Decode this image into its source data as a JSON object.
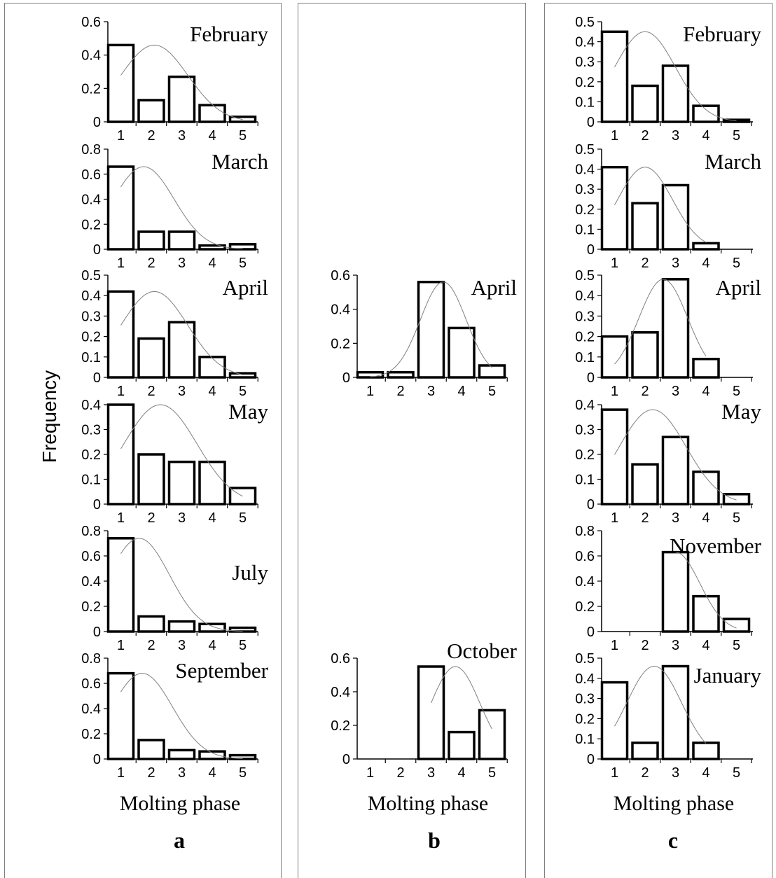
{
  "colors": {
    "bar_stroke": "#000000",
    "bar_fill": "#ffffff",
    "curve": "#808080",
    "panel_border": "#7f7f7f"
  },
  "figure": {
    "ylabel": "Frequency",
    "xlabel": "Molting phase",
    "panels": [
      {
        "letter": "a",
        "xlabel": "Molting phase"
      },
      {
        "letter": "b",
        "xlabel": "Molting phase"
      },
      {
        "letter": "c",
        "xlabel": "Molting phase"
      }
    ]
  },
  "chart_data": [
    {
      "type": "bar",
      "panel": "a",
      "row": 0,
      "title": "February",
      "categories": [
        "1",
        "2",
        "3",
        "4",
        "5"
      ],
      "values": [
        0.46,
        0.13,
        0.27,
        0.1,
        0.03
      ],
      "ylim": [
        0,
        0.6
      ],
      "yticks": [
        "0",
        "0.2",
        "0.4",
        "0.6"
      ],
      "fit_curve": {
        "mean": 2.1,
        "sd": 1.1,
        "peak": 0.46,
        "x_range": [
          1,
          5
        ]
      }
    },
    {
      "type": "bar",
      "panel": "a",
      "row": 1,
      "title": "March",
      "categories": [
        "1",
        "2",
        "3",
        "4",
        "5"
      ],
      "values": [
        0.66,
        0.14,
        0.14,
        0.03,
        0.04
      ],
      "ylim": [
        0,
        0.8
      ],
      "yticks": [
        "0",
        "0.2",
        "0.4",
        "0.6",
        "0.8"
      ],
      "fit_curve": {
        "mean": 1.75,
        "sd": 1.0,
        "peak": 0.66,
        "x_range": [
          1,
          5
        ]
      }
    },
    {
      "type": "bar",
      "panel": "a",
      "row": 2,
      "title": "April",
      "categories": [
        "1",
        "2",
        "3",
        "4",
        "5"
      ],
      "values": [
        0.42,
        0.19,
        0.27,
        0.1,
        0.02
      ],
      "ylim": [
        0,
        0.5
      ],
      "yticks": [
        "0",
        "0.1",
        "0.2",
        "0.3",
        "0.4",
        "0.5"
      ],
      "fit_curve": {
        "mean": 2.1,
        "sd": 1.1,
        "peak": 0.42,
        "x_range": [
          1,
          5
        ]
      }
    },
    {
      "type": "bar",
      "panel": "a",
      "row": 3,
      "title": "May",
      "categories": [
        "1",
        "2",
        "3",
        "4",
        "5"
      ],
      "values": [
        0.4,
        0.2,
        0.17,
        0.17,
        0.065
      ],
      "ylim": [
        0,
        0.4
      ],
      "yticks": [
        "0",
        "0.1",
        "0.2",
        "0.3",
        "0.4"
      ],
      "fit_curve": {
        "mean": 2.3,
        "sd": 1.2,
        "peak": 0.4,
        "x_range": [
          1,
          5
        ]
      }
    },
    {
      "type": "bar",
      "panel": "a",
      "row": 4,
      "title": "July",
      "categories": [
        "1",
        "2",
        "3",
        "4",
        "5"
      ],
      "values": [
        0.74,
        0.12,
        0.08,
        0.06,
        0.03
      ],
      "ylim": [
        0,
        0.8
      ],
      "yticks": [
        "0",
        "0.2",
        "0.4",
        "0.6",
        "0.8"
      ],
      "fit_curve": {
        "mean": 1.6,
        "sd": 1.0,
        "peak": 0.74,
        "x_range": [
          1,
          5
        ]
      }
    },
    {
      "type": "bar",
      "panel": "a",
      "row": 5,
      "title": "September",
      "categories": [
        "1",
        "2",
        "3",
        "4",
        "5"
      ],
      "values": [
        0.68,
        0.15,
        0.07,
        0.06,
        0.03
      ],
      "ylim": [
        0,
        0.8
      ],
      "yticks": [
        "0",
        "0.2",
        "0.4",
        "0.6",
        "0.8"
      ],
      "fit_curve": {
        "mean": 1.7,
        "sd": 1.0,
        "peak": 0.68,
        "x_range": [
          1,
          5
        ]
      }
    },
    {
      "type": "bar",
      "panel": "b",
      "row": 2,
      "title": "April",
      "categories": [
        "1",
        "2",
        "3",
        "4",
        "5"
      ],
      "values": [
        0.03,
        0.03,
        0.56,
        0.29,
        0.07
      ],
      "ylim": [
        0,
        0.6
      ],
      "yticks": [
        "0",
        "0.2",
        "0.4",
        "0.6"
      ],
      "fit_curve": {
        "mean": 3.4,
        "sd": 0.75,
        "peak": 0.56,
        "x_range": [
          1,
          5
        ]
      }
    },
    {
      "type": "bar",
      "panel": "b",
      "row": 5,
      "title": "October",
      "categories": [
        "1",
        "2",
        "3",
        "4",
        "5"
      ],
      "values": [
        0,
        0,
        0.55,
        0.16,
        0.29
      ],
      "ylim": [
        0,
        0.6
      ],
      "yticks": [
        "0",
        "0.2",
        "0.4",
        "0.6"
      ],
      "fit_curve": {
        "mean": 3.8,
        "sd": 0.8,
        "peak": 0.55,
        "x_range": [
          3,
          5
        ]
      }
    },
    {
      "type": "bar",
      "panel": "c",
      "row": 0,
      "title": "February",
      "categories": [
        "1",
        "2",
        "3",
        "4",
        "5"
      ],
      "values": [
        0.45,
        0.18,
        0.28,
        0.08,
        0.01
      ],
      "ylim": [
        0,
        0.5
      ],
      "yticks": [
        "0",
        "0.1",
        "0.2",
        "0.3",
        "0.4",
        "0.5"
      ],
      "fit_curve": {
        "mean": 2.0,
        "sd": 1.0,
        "peak": 0.45,
        "x_range": [
          1,
          5
        ]
      }
    },
    {
      "type": "bar",
      "panel": "c",
      "row": 1,
      "title": "March",
      "categories": [
        "1",
        "2",
        "3",
        "4",
        "5"
      ],
      "values": [
        0.41,
        0.23,
        0.32,
        0.03,
        0
      ],
      "ylim": [
        0,
        0.5
      ],
      "yticks": [
        "0",
        "0.1",
        "0.2",
        "0.3",
        "0.4",
        "0.5"
      ],
      "fit_curve": {
        "mean": 2.0,
        "sd": 0.9,
        "peak": 0.41,
        "x_range": [
          1,
          4
        ]
      }
    },
    {
      "type": "bar",
      "panel": "c",
      "row": 2,
      "title": "April",
      "categories": [
        "1",
        "2",
        "3",
        "4",
        "5"
      ],
      "values": [
        0.2,
        0.22,
        0.48,
        0.09,
        0
      ],
      "ylim": [
        0,
        0.5
      ],
      "yticks": [
        "0",
        "0.1",
        "0.2",
        "0.3",
        "0.4",
        "0.5"
      ],
      "fit_curve": {
        "mean": 2.6,
        "sd": 0.8,
        "peak": 0.48,
        "x_range": [
          1,
          4
        ]
      }
    },
    {
      "type": "bar",
      "panel": "c",
      "row": 3,
      "title": "May",
      "categories": [
        "1",
        "2",
        "3",
        "4",
        "5"
      ],
      "values": [
        0.38,
        0.16,
        0.27,
        0.13,
        0.04
      ],
      "ylim": [
        0,
        0.4
      ],
      "yticks": [
        "0",
        "0.1",
        "0.2",
        "0.3",
        "0.4"
      ],
      "fit_curve": {
        "mean": 2.25,
        "sd": 1.1,
        "peak": 0.38,
        "x_range": [
          1,
          5
        ]
      }
    },
    {
      "type": "bar",
      "panel": "c",
      "row": 4,
      "title": "November",
      "categories": [
        "1",
        "2",
        "3",
        "4",
        "5"
      ],
      "values": [
        0,
        0,
        0.63,
        0.28,
        0.1
      ],
      "ylim": [
        0,
        0.8
      ],
      "yticks": [
        "0",
        "0.2",
        "0.4",
        "0.6",
        "0.8"
      ],
      "fit_curve": {
        "mean": 3.0,
        "sd": 0.8,
        "peak": 0.63,
        "x_range": [
          3,
          5
        ]
      }
    },
    {
      "type": "bar",
      "panel": "c",
      "row": 5,
      "title": "January",
      "categories": [
        "1",
        "2",
        "3",
        "4",
        "5"
      ],
      "values": [
        0.38,
        0.08,
        0.46,
        0.08,
        0
      ],
      "ylim": [
        0,
        0.5
      ],
      "yticks": [
        "0",
        "0.1",
        "0.2",
        "0.3",
        "0.4",
        "0.5"
      ],
      "fit_curve": {
        "mean": 2.3,
        "sd": 0.9,
        "peak": 0.46,
        "x_range": [
          1,
          4
        ]
      }
    }
  ]
}
